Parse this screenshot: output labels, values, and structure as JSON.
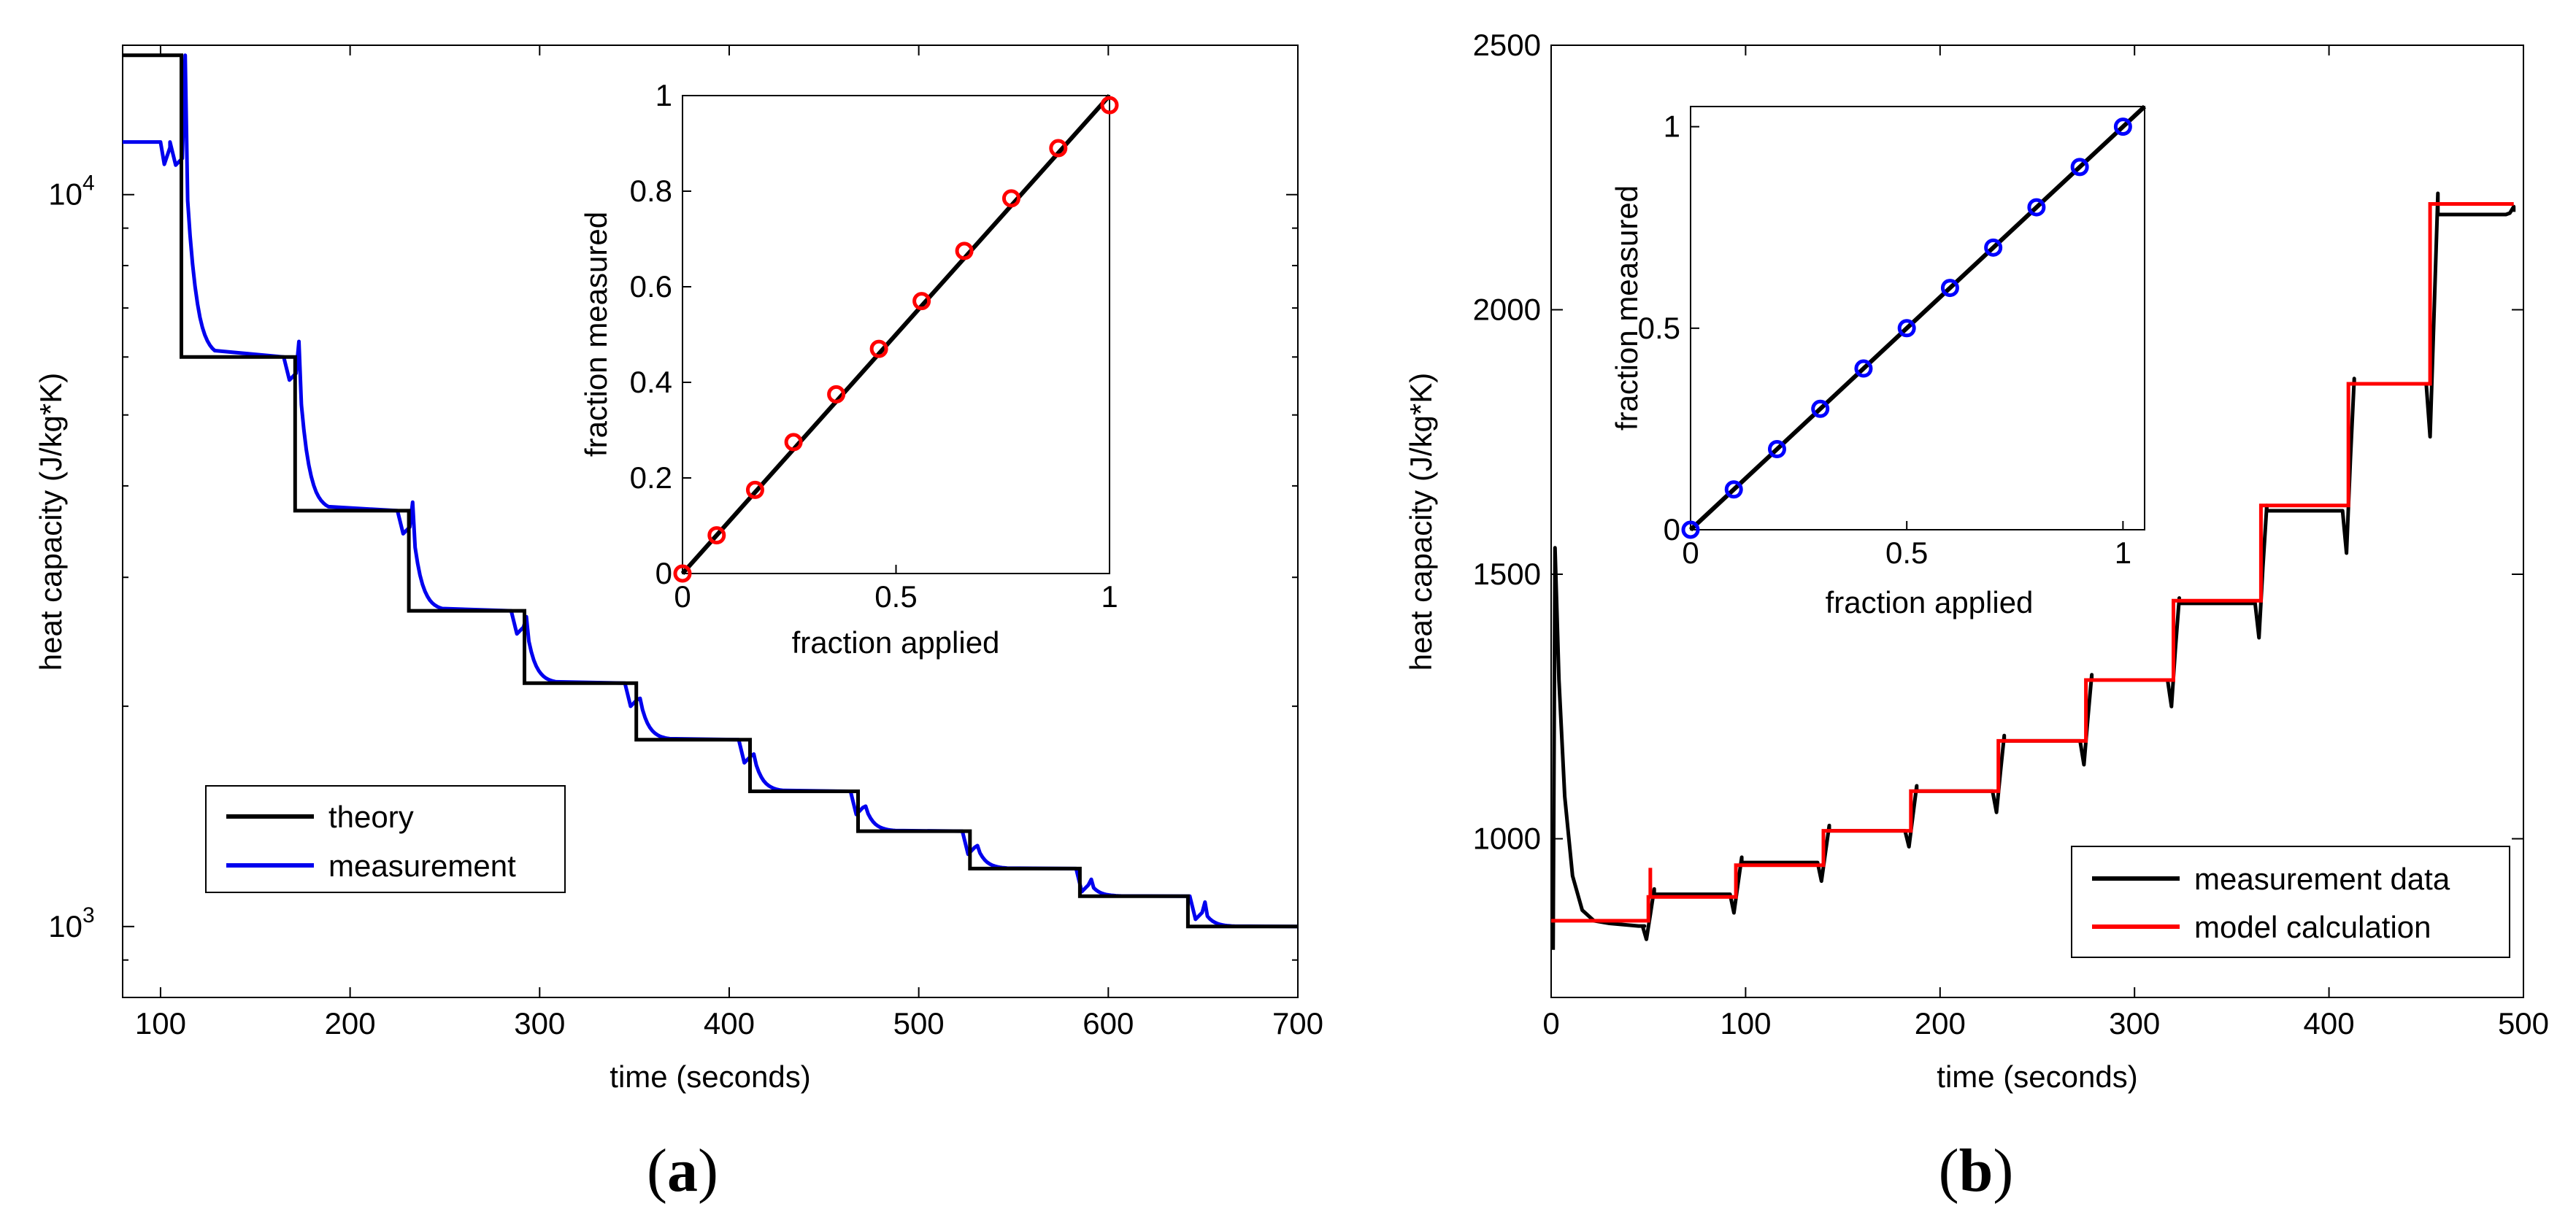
{
  "panels": {
    "a": {
      "label_open": "(",
      "label_letter": "a",
      "label_close": ")"
    },
    "b": {
      "label_open": "(",
      "label_letter": "b",
      "label_close": ")"
    }
  },
  "chart_data": [
    {
      "id": "a",
      "type": "line",
      "xlabel": "time (seconds)",
      "ylabel": "heat capacity (J/kg*K)",
      "yscale": "log",
      "xlim": [
        80,
        700
      ],
      "ylim": [
        800,
        16000
      ],
      "xticks": [
        100,
        200,
        300,
        400,
        500,
        600,
        700
      ],
      "yticks": [
        {
          "value": 1000,
          "base": "10",
          "exp": "3"
        },
        {
          "value": 10000,
          "base": "10",
          "exp": "4"
        }
      ],
      "legend": {
        "position": "lower-left",
        "entries": [
          {
            "label": "theory",
            "color": "#000000"
          },
          {
            "label": "measurement",
            "color": "#0000ee"
          }
        ]
      },
      "series": [
        {
          "name": "theory",
          "color": "#000000",
          "steps": [
            [
              80,
              15500
            ],
            [
              111,
              6000
            ],
            [
              171,
              3700
            ],
            [
              231,
              2700
            ],
            [
              292,
              2150
            ],
            [
              351,
              1800
            ],
            [
              411,
              1530
            ],
            [
              468,
              1350
            ],
            [
              527,
              1200
            ],
            [
              585,
              1100
            ],
            [
              642,
              1000
            ],
            [
              700,
              1000
            ]
          ]
        },
        {
          "name": "measurement",
          "color": "#0000ee",
          "levels": [
            [
              80,
              11800
            ],
            [
              113,
              6000
            ],
            [
              173,
              3700
            ],
            [
              233,
              2700
            ],
            [
              293,
              2150
            ],
            [
              353,
              1800
            ],
            [
              413,
              1530
            ],
            [
              472,
              1350
            ],
            [
              531,
              1200
            ],
            [
              591,
              1100
            ],
            [
              651,
              1000
            ]
          ],
          "spikes": [
            15500,
            6300,
            3800,
            2650,
            2050,
            1720,
            1460,
            1290,
            1160,
            1080
          ]
        }
      ],
      "inset": {
        "xlabel": "fraction applied",
        "ylabel": "fraction measured",
        "xlim": [
          0,
          1
        ],
        "ylim": [
          0,
          1
        ],
        "xticks": [
          0,
          0.5,
          1
        ],
        "yticks": [
          0,
          0.2,
          0.4,
          0.6,
          0.8,
          1
        ],
        "line": [
          [
            0,
            0
          ],
          [
            1,
            1
          ]
        ],
        "marker_color": "#ff0000",
        "x": [
          0,
          0.08,
          0.17,
          0.26,
          0.36,
          0.46,
          0.56,
          0.66,
          0.77,
          0.88,
          1.0
        ],
        "y": [
          0,
          0.08,
          0.175,
          0.275,
          0.375,
          0.47,
          0.57,
          0.675,
          0.785,
          0.89,
          0.98
        ]
      }
    },
    {
      "id": "b",
      "type": "line",
      "xlabel": "time (seconds)",
      "ylabel": "heat capacity (J/kg*K)",
      "xlim": [
        0,
        500
      ],
      "ylim": [
        700,
        2500
      ],
      "xticks": [
        0,
        100,
        200,
        300,
        400,
        500
      ],
      "yticks": [
        1000,
        1500,
        2000,
        2500
      ],
      "legend": {
        "position": "lower-right",
        "entries": [
          {
            "label": "measurement data",
            "color": "#000000"
          },
          {
            "label": "model calculation",
            "color": "#ff0000"
          }
        ]
      },
      "series": [
        {
          "name": "model calculation",
          "color": "#ff0000",
          "steps": [
            [
              0,
              845
            ],
            [
              50,
              890
            ],
            [
              95,
              950
            ],
            [
              140,
              1015
            ],
            [
              185,
              1090
            ],
            [
              230,
              1185
            ],
            [
              275,
              1300
            ],
            [
              320,
              1450
            ],
            [
              365,
              1630
            ],
            [
              410,
              1860
            ],
            [
              452,
              2200
            ],
            [
              495,
              2200
            ]
          ]
        },
        {
          "name": "measurement data",
          "color": "#000000",
          "transient": [
            [
              1,
              790
            ],
            [
              2,
              1550
            ],
            [
              4,
              1300
            ],
            [
              7,
              1080
            ],
            [
              11,
              930
            ],
            [
              16,
              865
            ],
            [
              22,
              845
            ],
            [
              30,
              840
            ],
            [
              45,
              835
            ]
          ],
          "levels": [
            [
              48,
              835
            ],
            [
              53,
              895
            ],
            [
              98,
              955
            ],
            [
              143,
              1015
            ],
            [
              188,
              1090
            ],
            [
              233,
              1185
            ],
            [
              278,
              1300
            ],
            [
              323,
              1445
            ],
            [
              368,
              1620
            ],
            [
              413,
              1860
            ],
            [
              456,
              2180
            ],
            [
              495,
              2185
            ]
          ],
          "dips": [
            810,
            860,
            920,
            985,
            1050,
            1140,
            1250,
            1380,
            1540,
            1760
          ]
        }
      ],
      "inset": {
        "xlabel": "fraction applied",
        "ylabel": "fraction measured",
        "xlim": [
          0,
          1.05
        ],
        "ylim": [
          0,
          1.05
        ],
        "xticks": [
          0,
          0.5,
          1
        ],
        "yticks": [
          0,
          0.5,
          1
        ],
        "line": [
          [
            0,
            0
          ],
          [
            1.05,
            1.05
          ]
        ],
        "marker_color": "#0000ff",
        "x": [
          0,
          0.1,
          0.2,
          0.3,
          0.4,
          0.5,
          0.6,
          0.7,
          0.8,
          0.9,
          1.0
        ],
        "y": [
          0,
          0.1,
          0.2,
          0.3,
          0.4,
          0.5,
          0.6,
          0.7,
          0.8,
          0.9,
          1.0
        ]
      }
    }
  ]
}
